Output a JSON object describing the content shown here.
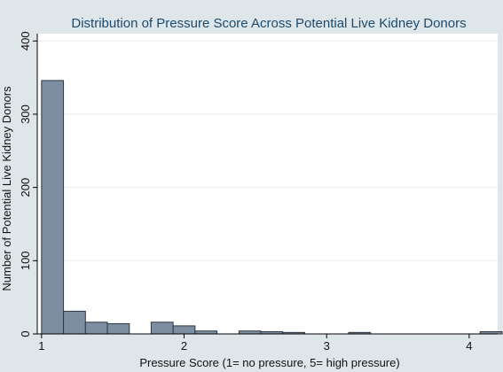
{
  "chart_data": {
    "type": "bar",
    "title": "Distribution of Pressure Score Across Potential Live Kidney Donors",
    "xlabel": "Pressure Score (1= no pressure, 5= high pressure)",
    "ylabel": "Number of Potential Live Kidney Donors",
    "xlim": [
      0.97,
      4.2
    ],
    "ylim": [
      0,
      410
    ],
    "xticks": [
      1,
      2,
      3,
      4
    ],
    "yticks": [
      0,
      100,
      200,
      300,
      400
    ],
    "bin_width": 0.154,
    "bins": [
      {
        "start": 1.0,
        "value": 346
      },
      {
        "start": 1.154,
        "value": 31
      },
      {
        "start": 1.308,
        "value": 16
      },
      {
        "start": 1.462,
        "value": 14
      },
      {
        "start": 1.769,
        "value": 16
      },
      {
        "start": 1.923,
        "value": 11
      },
      {
        "start": 2.077,
        "value": 4
      },
      {
        "start": 2.385,
        "value": 4
      },
      {
        "start": 2.538,
        "value": 3
      },
      {
        "start": 2.692,
        "value": 2
      },
      {
        "start": 3.154,
        "value": 2
      },
      {
        "start": 4.077,
        "value": 3
      }
    ],
    "grid": true,
    "colors": {
      "bar_fill": "#7d8ea2",
      "bar_stroke": "#2e3742",
      "background": "#dfe6ea",
      "plot_background": "#ffffff",
      "grid": "#e7edf0",
      "title": "#1a4a6e"
    }
  }
}
